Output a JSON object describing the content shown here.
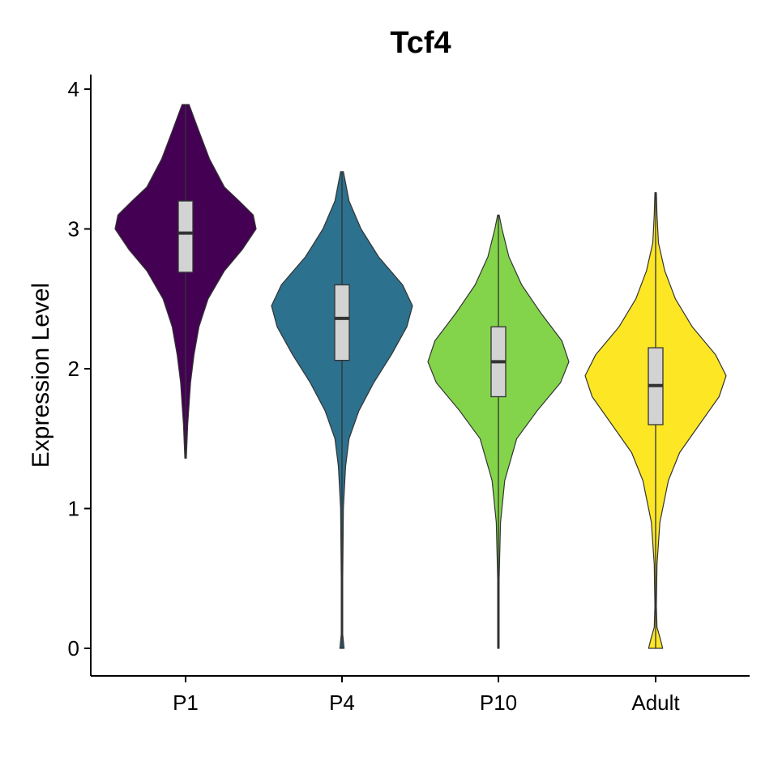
{
  "chart_data": {
    "type": "violin",
    "title": "Tcf4",
    "xlabel": "",
    "ylabel": "Expression Level",
    "ylim": [
      -0.2,
      4.1
    ],
    "yticks": [
      "0",
      "1",
      "2",
      "3",
      "4"
    ],
    "grid": false,
    "legend": "none",
    "categories": [
      "P1",
      "P4",
      "P10",
      "Adult"
    ],
    "colors": [
      "#440154",
      "#2c718e",
      "#84d44b",
      "#fde725"
    ],
    "box_fill": "#d3d3d3",
    "outline_color": "#333333",
    "series": [
      {
        "category": "P1",
        "min": 1.36,
        "q1": 2.69,
        "median": 2.97,
        "q3": 3.2,
        "max": 3.89,
        "density": [
          [
            1.36,
            0.01
          ],
          [
            1.6,
            0.03
          ],
          [
            1.9,
            0.07
          ],
          [
            2.1,
            0.12
          ],
          [
            2.3,
            0.19
          ],
          [
            2.5,
            0.32
          ],
          [
            2.7,
            0.55
          ],
          [
            2.85,
            0.8
          ],
          [
            3.0,
            1.0
          ],
          [
            3.1,
            0.96
          ],
          [
            3.2,
            0.76
          ],
          [
            3.3,
            0.55
          ],
          [
            3.5,
            0.34
          ],
          [
            3.7,
            0.19
          ],
          [
            3.89,
            0.05
          ]
        ]
      },
      {
        "category": "P4",
        "min": 0.0,
        "q1": 2.06,
        "median": 2.36,
        "q3": 2.6,
        "max": 3.41,
        "density": [
          [
            0.0,
            0.03
          ],
          [
            0.1,
            0.01
          ],
          [
            0.5,
            0.01
          ],
          [
            1.0,
            0.02
          ],
          [
            1.3,
            0.05
          ],
          [
            1.5,
            0.1
          ],
          [
            1.7,
            0.24
          ],
          [
            1.9,
            0.45
          ],
          [
            2.1,
            0.7
          ],
          [
            2.3,
            0.92
          ],
          [
            2.45,
            1.0
          ],
          [
            2.6,
            0.86
          ],
          [
            2.8,
            0.52
          ],
          [
            3.0,
            0.27
          ],
          [
            3.2,
            0.1
          ],
          [
            3.41,
            0.02
          ]
        ]
      },
      {
        "category": "P10",
        "min": 0.0,
        "q1": 1.8,
        "median": 2.05,
        "q3": 2.3,
        "max": 3.1,
        "density": [
          [
            0.0,
            0.01
          ],
          [
            0.5,
            0.01
          ],
          [
            0.9,
            0.03
          ],
          [
            1.2,
            0.09
          ],
          [
            1.5,
            0.26
          ],
          [
            1.7,
            0.55
          ],
          [
            1.9,
            0.88
          ],
          [
            2.05,
            1.0
          ],
          [
            2.2,
            0.9
          ],
          [
            2.4,
            0.6
          ],
          [
            2.6,
            0.33
          ],
          [
            2.8,
            0.15
          ],
          [
            3.0,
            0.05
          ],
          [
            3.1,
            0.01
          ]
        ]
      },
      {
        "category": "Adult",
        "min": 0.0,
        "q1": 1.6,
        "median": 1.88,
        "q3": 2.15,
        "max": 3.26,
        "density": [
          [
            0.0,
            0.1
          ],
          [
            0.08,
            0.06
          ],
          [
            0.15,
            0.02
          ],
          [
            0.3,
            0.01
          ],
          [
            0.6,
            0.02
          ],
          [
            0.9,
            0.06
          ],
          [
            1.2,
            0.18
          ],
          [
            1.4,
            0.34
          ],
          [
            1.6,
            0.62
          ],
          [
            1.8,
            0.9
          ],
          [
            1.95,
            1.0
          ],
          [
            2.1,
            0.85
          ],
          [
            2.3,
            0.52
          ],
          [
            2.5,
            0.28
          ],
          [
            2.7,
            0.13
          ],
          [
            2.9,
            0.04
          ],
          [
            3.1,
            0.02
          ],
          [
            3.26,
            0.01
          ]
        ]
      }
    ]
  }
}
